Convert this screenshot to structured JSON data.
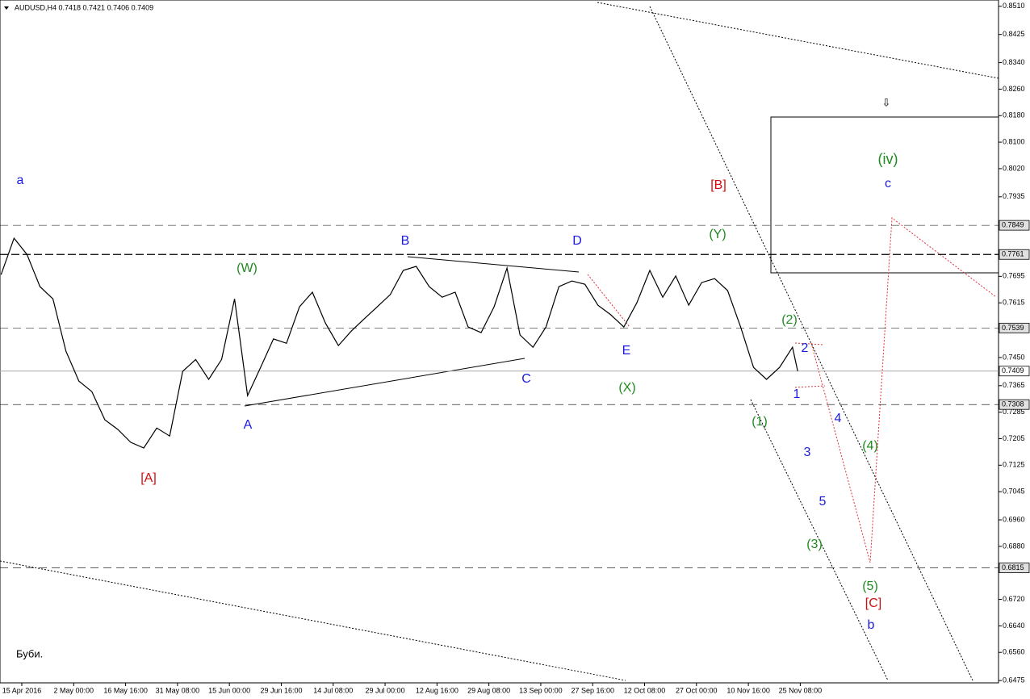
{
  "chart_data": {
    "type": "line",
    "symbol_info": "AUDUSD,H4  0.7418 0.7421 0.7406 0.7409",
    "footnote": "Буби.",
    "xlim": [
      -0.42,
      18.82
    ],
    "ylim": [
      0.6468,
      0.8529
    ],
    "xticks": [
      {
        "value": 0,
        "label": "15 Apr 2016"
      },
      {
        "value": 1,
        "label": "2 May 00:00"
      },
      {
        "value": 2,
        "label": "16 May 16:00"
      },
      {
        "value": 3,
        "label": "31 May 08:00"
      },
      {
        "value": 4,
        "label": "15 Jun 00:00"
      },
      {
        "value": 5,
        "label": "29 Jun 16:00"
      },
      {
        "value": 6,
        "label": "14 Jul 08:00"
      },
      {
        "value": 7,
        "label": "29 Jul 00:00"
      },
      {
        "value": 8,
        "label": "12 Aug 16:00"
      },
      {
        "value": 9,
        "label": "29 Aug 08:00"
      },
      {
        "value": 10,
        "label": "13 Sep 00:00"
      },
      {
        "value": 11,
        "label": "27 Sep 16:00"
      },
      {
        "value": 12,
        "label": "12 Oct 08:00"
      },
      {
        "value": 13,
        "label": "27 Oct 00:00"
      },
      {
        "value": 14,
        "label": "10 Nov 16:00"
      },
      {
        "value": 15,
        "label": "25 Nov 08:00"
      }
    ],
    "yticks": [
      {
        "value": 0.851,
        "label": "0.8510"
      },
      {
        "value": 0.8425,
        "label": "0.8425"
      },
      {
        "value": 0.834,
        "label": "0.8340"
      },
      {
        "value": 0.826,
        "label": "0.8260"
      },
      {
        "value": 0.818,
        "label": "0.8180"
      },
      {
        "value": 0.81,
        "label": "0.8100"
      },
      {
        "value": 0.802,
        "label": "0.8020"
      },
      {
        "value": 0.7935,
        "label": "0.7935"
      },
      {
        "value": 0.7695,
        "label": "0.7695"
      },
      {
        "value": 0.7615,
        "label": "0.7615"
      },
      {
        "value": 0.745,
        "label": "0.7450"
      },
      {
        "value": 0.7365,
        "label": "0.7365"
      },
      {
        "value": 0.7285,
        "label": "0.7285"
      },
      {
        "value": 0.7205,
        "label": "0.7205"
      },
      {
        "value": 0.7125,
        "label": "0.7125"
      },
      {
        "value": 0.7045,
        "label": "0.7045"
      },
      {
        "value": 0.696,
        "label": "0.6960"
      },
      {
        "value": 0.688,
        "label": "0.6880"
      },
      {
        "value": 0.672,
        "label": "0.6720"
      },
      {
        "value": 0.664,
        "label": "0.6640"
      },
      {
        "value": 0.656,
        "label": "0.6560"
      },
      {
        "value": 0.6475,
        "label": "0.6475"
      }
    ],
    "levels": [
      {
        "value": 0.7849,
        "label": "0.7849"
      },
      {
        "value": 0.7761,
        "label": "0.7761"
      },
      {
        "value": 0.7539,
        "label": "0.7539"
      },
      {
        "value": 0.7308,
        "label": "0.7308"
      },
      {
        "value": 0.6815,
        "label": "0.6815"
      }
    ],
    "current_price": {
      "value": 0.7409,
      "label": "0.7409"
    },
    "x": [
      -0.4,
      -0.15,
      0.1,
      0.35,
      0.6,
      0.85,
      1.1,
      1.35,
      1.6,
      1.85,
      2.1,
      2.35,
      2.6,
      2.85,
      3.1,
      3.35,
      3.6,
      3.85,
      4.1,
      4.35,
      4.6,
      4.85,
      5.1,
      5.35,
      5.6,
      5.85,
      6.1,
      6.35,
      6.6,
      6.85,
      7.1,
      7.35,
      7.6,
      7.85,
      8.1,
      8.35,
      8.6,
      8.85,
      9.1,
      9.35,
      9.6,
      9.85,
      10.1,
      10.35,
      10.6,
      10.85,
      11.1,
      11.35,
      11.6,
      11.85,
      12.1,
      12.35,
      12.6,
      12.85,
      13.1,
      13.35,
      13.6,
      13.85,
      14.1,
      14.35,
      14.6,
      14.85,
      14.95
    ],
    "series": [
      {
        "name": "AUDUSD",
        "color": "#000000",
        "values": [
          0.77,
          0.781,
          0.7761,
          0.7664,
          0.7627,
          0.7469,
          0.7379,
          0.7347,
          0.7262,
          0.7233,
          0.7194,
          0.7177,
          0.7237,
          0.7213,
          0.7408,
          0.7444,
          0.7384,
          0.7444,
          0.7627,
          0.7335,
          0.742,
          0.7506,
          0.7493,
          0.7603,
          0.7647,
          0.7554,
          0.7486,
          0.753,
          0.7567,
          0.7603,
          0.764,
          0.7713,
          0.7725,
          0.7664,
          0.7632,
          0.7647,
          0.7542,
          0.7525,
          0.7603,
          0.772,
          0.7518,
          0.7481,
          0.7542,
          0.7664,
          0.7681,
          0.7671,
          0.7608,
          0.7579,
          0.7542,
          0.7615,
          0.7713,
          0.7632,
          0.7696,
          0.7608,
          0.7676,
          0.7688,
          0.7652,
          0.7542,
          0.742,
          0.7384,
          0.742,
          0.7481,
          0.7409
        ]
      }
    ],
    "annotations": [
      {
        "text": "a",
        "color": "#1a1ae0"
      },
      {
        "text": "[A]",
        "color": "#d01010"
      },
      {
        "text": "(W)",
        "color": "#1f8a1f"
      },
      {
        "text": "A",
        "color": "#1a1ae0"
      },
      {
        "text": "B",
        "color": "#1a1ae0"
      },
      {
        "text": "C",
        "color": "#1a1ae0"
      },
      {
        "text": "D",
        "color": "#1a1ae0"
      },
      {
        "text": "E",
        "color": "#1a1ae0"
      },
      {
        "text": "(X)",
        "color": "#1f8a1f"
      },
      {
        "text": "(Y)",
        "color": "#1f8a1f"
      },
      {
        "text": "[B]",
        "color": "#d01010"
      },
      {
        "text": "(1)",
        "color": "#1f8a1f"
      },
      {
        "text": "(2)",
        "color": "#1f8a1f"
      },
      {
        "text": "2",
        "color": "#1a1ae0"
      },
      {
        "text": "1",
        "color": "#1a1ae0"
      },
      {
        "text": "4",
        "color": "#1a1ae0"
      },
      {
        "text": "3",
        "color": "#1a1ae0"
      },
      {
        "text": "(4)",
        "color": "#1f8a1f"
      },
      {
        "text": "5",
        "color": "#1a1ae0"
      },
      {
        "text": "(3)",
        "color": "#1f8a1f"
      },
      {
        "text": "(5)",
        "color": "#1f8a1f"
      },
      {
        "text": "[C]",
        "color": "#d01010"
      },
      {
        "text": "b",
        "color": "#1a1ae0"
      },
      {
        "text": "(iv)",
        "color": "#1f8a1f"
      },
      {
        "text": "c",
        "color": "#1a1ae0"
      }
    ]
  }
}
